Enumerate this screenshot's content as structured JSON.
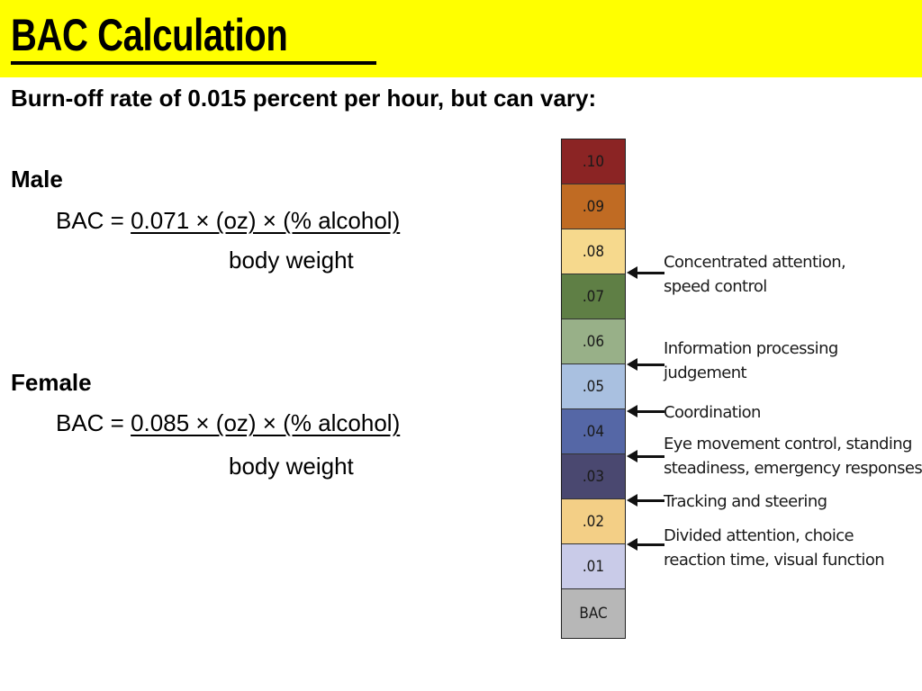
{
  "title": "BAC Calculation",
  "subtitle": "Burn-off rate of 0.015 percent per hour, but can vary:",
  "male": {
    "label": "Male",
    "prefix": "BAC = ",
    "numerator": "0.071 × (oz) × (% alcohol)",
    "denominator": "body weight"
  },
  "female": {
    "label": "Female",
    "prefix": "BAC = ",
    "numerator": "0.085 × (oz) × (% alcohol)",
    "denominator": "body weight"
  },
  "scale": [
    {
      "label": ".10",
      "color": "#8b2424"
    },
    {
      "label": ".09",
      "color": "#c06b23"
    },
    {
      "label": ".08",
      "color": "#f6d98d"
    },
    {
      "label": ".07",
      "color": "#5f7f45"
    },
    {
      "label": ".06",
      "color": "#98b088"
    },
    {
      "label": ".05",
      "color": "#a9c0e0"
    },
    {
      "label": ".04",
      "color": "#5567a6"
    },
    {
      "label": ".03",
      "color": "#4a4870"
    },
    {
      "label": ".02",
      "color": "#f3cf86"
    },
    {
      "label": ".01",
      "color": "#c9cbe8"
    },
    {
      "label": "BAC",
      "color": "#b7b7b7"
    }
  ],
  "effects": [
    {
      "line1": "Concentrated attention,",
      "line2": "speed control"
    },
    {
      "line1": "Information processing",
      "line2": "judgement"
    },
    {
      "line1": "Coordination",
      "line2": ""
    },
    {
      "line1": "Eye movement control, standing",
      "line2": "steadiness, emergency responses"
    },
    {
      "line1": "Tracking and steering",
      "line2": ""
    },
    {
      "line1": "Divided attention, choice",
      "line2": "reaction time, visual function"
    }
  ]
}
